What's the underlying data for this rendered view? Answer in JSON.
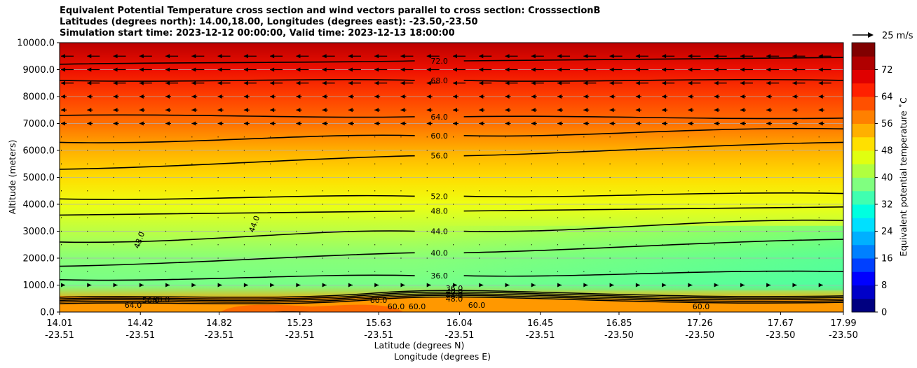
{
  "chart_data": {
    "type": "heatmap",
    "title_lines": [
      "Equivalent Potential Temperature cross section and wind vectors parallel to cross section: CrosssectionB",
      "Latitudes (degrees north): 14.00,18.00, Longitudes (degrees east): -23.50,-23.50",
      "Simulation start time: 2023-12-12 00:00:00, Valid time: 2023-12-13 18:00:00"
    ],
    "ylabel": "Altitude (meters)",
    "xlabel_lat": "Latitude (degrees N)",
    "xlabel_lon": "Longitude (degrees E)",
    "ylim": [
      0,
      10000
    ],
    "yticks": [
      "0.0",
      "1000.0",
      "2000.0",
      "3000.0",
      "4000.0",
      "5000.0",
      "6000.0",
      "7000.0",
      "8000.0",
      "9000.0",
      "10000.0"
    ],
    "xticks_lat": [
      "14.01",
      "14.42",
      "14.82",
      "15.23",
      "15.63",
      "16.04",
      "16.45",
      "16.85",
      "17.26",
      "17.67",
      "17.99"
    ],
    "xticks_lon": [
      "-23.51",
      "-23.51",
      "-23.51",
      "-23.51",
      "-23.51",
      "-23.51",
      "-23.51",
      "-23.50",
      "-23.50",
      "-23.50",
      "-23.50"
    ],
    "colorbar_label": "Equivalent potential temperature ˚C",
    "colorbar_range": [
      0,
      80
    ],
    "colorbar_ticks": [
      "0",
      "8",
      "16",
      "24",
      "32",
      "40",
      "48",
      "56",
      "64",
      "72"
    ],
    "quiver_key": "25 m/s",
    "contour_levels": [
      {
        "label": "72.0",
        "alt_left": 9200,
        "alt_right": 9450
      },
      {
        "label": "68.0",
        "alt_left": 8600,
        "alt_right": 8600
      },
      {
        "label": "64.0",
        "alt_left": 7300,
        "alt_right": 7200
      },
      {
        "label": "60.0",
        "alt_left": 6300,
        "alt_right": 6800
      },
      {
        "label": "56.0",
        "alt_left": 5300,
        "alt_right": 6300
      },
      {
        "label": "52.0",
        "alt_left": 4200,
        "alt_right": 4400
      },
      {
        "label": "48.0",
        "alt_left": 3600,
        "alt_right": 3900
      },
      {
        "label": "44.0",
        "alt_left": 2600,
        "alt_right": 3400
      },
      {
        "label": "40.0",
        "alt_left": 1700,
        "alt_right": 2700
      },
      {
        "label": "36.0",
        "alt_left": 1200,
        "alt_right": 1500
      }
    ],
    "surface_labels": [
      "64.0",
      "56.0",
      "60.0",
      "60.0",
      "60.0",
      "60.0",
      "60.0",
      "60.0",
      "36.0",
      "40.0",
      "44.0",
      "48.0"
    ],
    "annotation_labels": [
      "48.0",
      "44.0"
    ],
    "grid": "horizontal"
  }
}
